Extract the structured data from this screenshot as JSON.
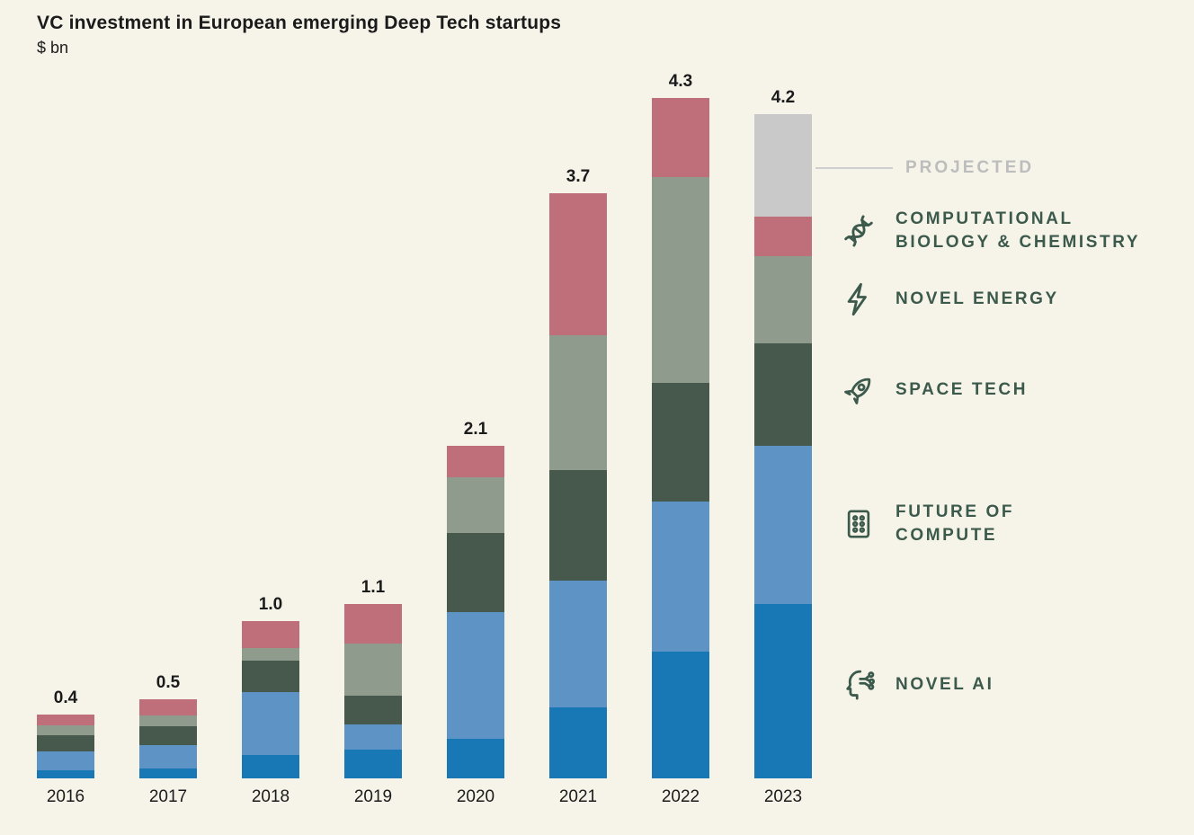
{
  "header": {
    "title": "VC investment in European emerging Deep Tech startups",
    "subtitle": "$ bn"
  },
  "chart_data": {
    "type": "bar",
    "stacked": true,
    "title": "VC investment in European emerging Deep Tech startups",
    "xlabel": "",
    "ylabel": "$ bn",
    "unit": "$ bn",
    "grid": false,
    "legend_position": "right",
    "ylim": [
      0,
      4.5
    ],
    "categories": [
      "2016",
      "2017",
      "2018",
      "2019",
      "2020",
      "2021",
      "2022",
      "2023"
    ],
    "totals": [
      0.4,
      0.5,
      1.0,
      1.1,
      2.1,
      3.7,
      4.3,
      4.2
    ],
    "series": [
      {
        "name": "NOVEL AI",
        "color": "#1778b5",
        "values": [
          0.05,
          0.06,
          0.15,
          0.18,
          0.25,
          0.45,
          0.8,
          1.1
        ]
      },
      {
        "name": "FUTURE OF COMPUTE",
        "color": "#5e94c5",
        "values": [
          0.12,
          0.15,
          0.4,
          0.16,
          0.8,
          0.8,
          0.95,
          1.0
        ]
      },
      {
        "name": "SPACE TECH",
        "color": "#47594c",
        "values": [
          0.1,
          0.12,
          0.2,
          0.18,
          0.5,
          0.7,
          0.75,
          0.65
        ]
      },
      {
        "name": "NOVEL ENERGY",
        "color": "#8e9b8d",
        "values": [
          0.06,
          0.07,
          0.08,
          0.33,
          0.35,
          0.85,
          1.3,
          0.55
        ]
      },
      {
        "name": "COMPUTATIONAL BIOLOGY & CHEMISTRY",
        "color": "#bf6f79",
        "values": [
          0.07,
          0.1,
          0.17,
          0.25,
          0.2,
          0.9,
          0.5,
          0.25
        ]
      },
      {
        "name": "PROJECTED",
        "color": "#c9c9c9",
        "values": [
          0,
          0,
          0,
          0,
          0,
          0,
          0,
          0.65
        ]
      }
    ]
  },
  "legend": {
    "items": [
      {
        "label": "PROJECTED",
        "icon": "projected-connector-line",
        "color": "#c9c9c9"
      },
      {
        "label": "COMPUTATIONAL BIOLOGY & CHEMISTRY",
        "icon": "dna-icon",
        "color": "#bf6f79"
      },
      {
        "label": "NOVEL ENERGY",
        "icon": "lightning-icon",
        "color": "#8e9b8d"
      },
      {
        "label": "SPACE TECH",
        "icon": "rocket-icon",
        "color": "#47594c"
      },
      {
        "label": "FUTURE OF COMPUTE",
        "icon": "compute-chip-icon",
        "color": "#5e94c5"
      },
      {
        "label": "NOVEL AI",
        "icon": "ai-head-icon",
        "color": "#1778b5"
      }
    ]
  },
  "colors": {
    "background": "#f6f3e9",
    "text": "#1b1b1b",
    "legend_text": "#3c5a4c",
    "projected_text": "#bdbdbd",
    "novel_ai": "#1778b5",
    "future_of_compute": "#5e94c5",
    "space_tech": "#47594c",
    "novel_energy": "#8e9b8d",
    "computational_biology": "#bf6f79",
    "projected": "#c9c9c9"
  }
}
